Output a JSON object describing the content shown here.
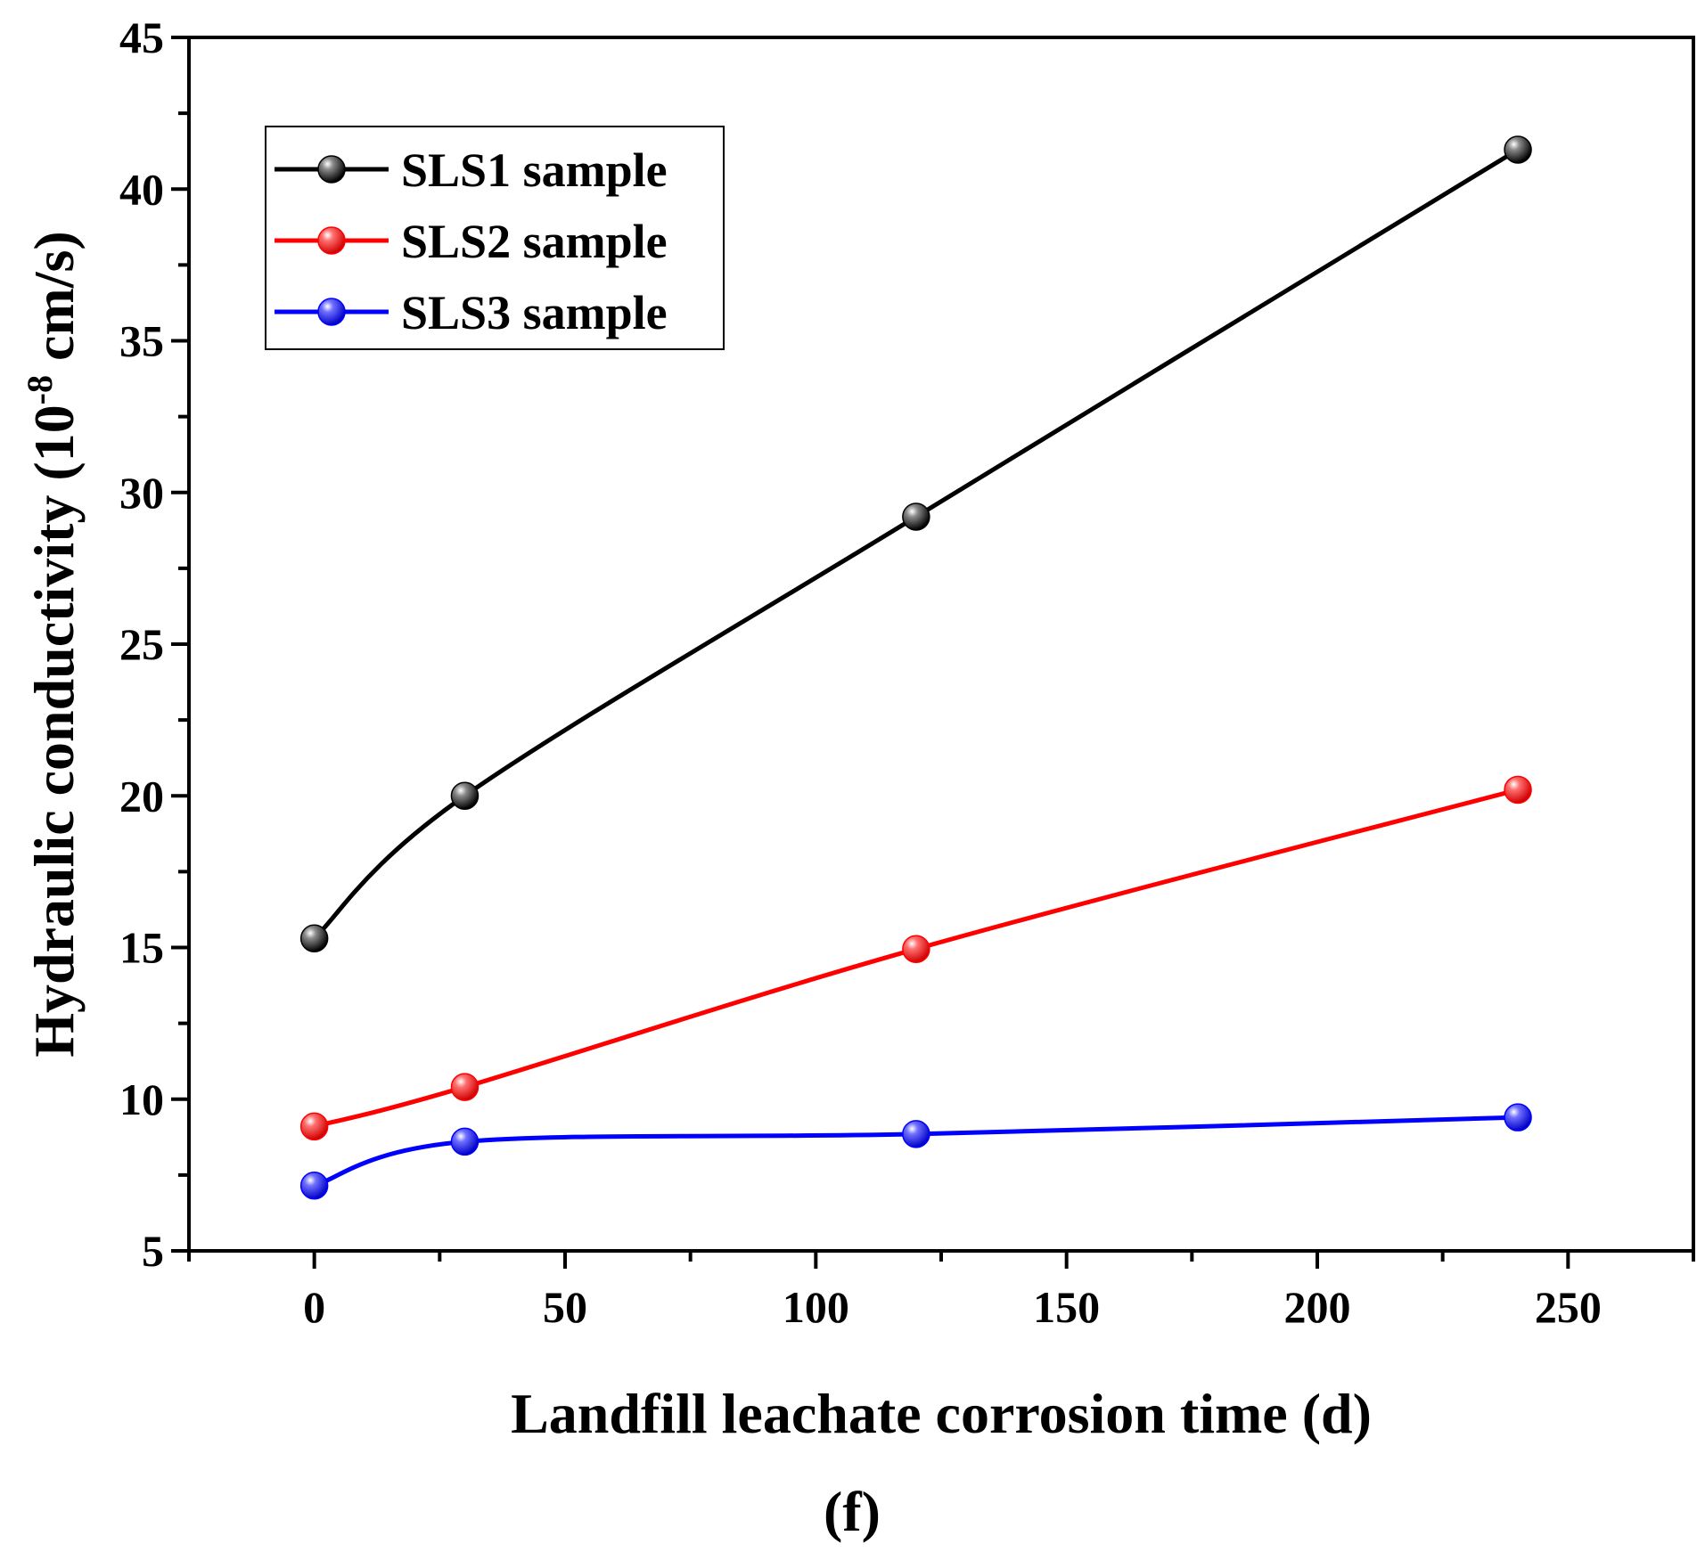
{
  "chart_data": {
    "type": "line",
    "title": "",
    "caption": "(f)",
    "xlabel": "Landfill leachate corrosion time (d)",
    "ylabel": "Hydraulic conductivity (10",
    "ylabel_sup": "-8",
    "ylabel_tail": " cm/s)",
    "xlim": [
      -25,
      275
    ],
    "ylim": [
      5,
      45
    ],
    "xticks": [
      0,
      50,
      100,
      150,
      200,
      250
    ],
    "yticks": [
      5,
      10,
      15,
      20,
      25,
      30,
      35,
      40,
      45
    ],
    "legend_position": "top-left",
    "series": [
      {
        "name": "SLS1 sample",
        "color": "#000000",
        "x": [
          0,
          30,
          120,
          240
        ],
        "y": [
          15.3,
          20.0,
          29.2,
          41.3
        ]
      },
      {
        "name": "SLS2 sample",
        "color": "#ff0000",
        "x": [
          0,
          30,
          120,
          240
        ],
        "y": [
          9.1,
          10.4,
          14.95,
          20.2
        ]
      },
      {
        "name": "SLS3 sample",
        "color": "#0000ff",
        "x": [
          0,
          30,
          120,
          240
        ],
        "y": [
          7.15,
          8.6,
          8.85,
          9.4
        ]
      }
    ]
  }
}
